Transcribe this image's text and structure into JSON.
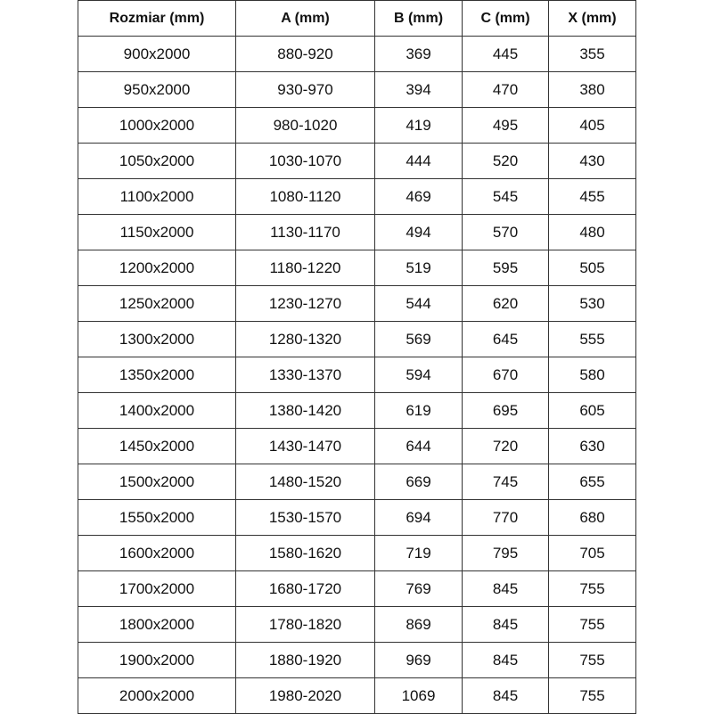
{
  "table": {
    "headers": [
      "Rozmiar (mm)",
      "A (mm)",
      "B (mm)",
      "C (mm)",
      "X (mm)"
    ],
    "rows": [
      [
        "900x2000",
        "880-920",
        "369",
        "445",
        "355"
      ],
      [
        "950x2000",
        "930-970",
        "394",
        "470",
        "380"
      ],
      [
        "1000x2000",
        "980-1020",
        "419",
        "495",
        "405"
      ],
      [
        "1050x2000",
        "1030-1070",
        "444",
        "520",
        "430"
      ],
      [
        "1100x2000",
        "1080-1120",
        "469",
        "545",
        "455"
      ],
      [
        "1150x2000",
        "1130-1170",
        "494",
        "570",
        "480"
      ],
      [
        "1200x2000",
        "1180-1220",
        "519",
        "595",
        "505"
      ],
      [
        "1250x2000",
        "1230-1270",
        "544",
        "620",
        "530"
      ],
      [
        "1300x2000",
        "1280-1320",
        "569",
        "645",
        "555"
      ],
      [
        "1350x2000",
        "1330-1370",
        "594",
        "670",
        "580"
      ],
      [
        "1400x2000",
        "1380-1420",
        "619",
        "695",
        "605"
      ],
      [
        "1450x2000",
        "1430-1470",
        "644",
        "720",
        "630"
      ],
      [
        "1500x2000",
        "1480-1520",
        "669",
        "745",
        "655"
      ],
      [
        "1550x2000",
        "1530-1570",
        "694",
        "770",
        "680"
      ],
      [
        "1600x2000",
        "1580-1620",
        "719",
        "795",
        "705"
      ],
      [
        "1700x2000",
        "1680-1720",
        "769",
        "845",
        "755"
      ],
      [
        "1800x2000",
        "1780-1820",
        "869",
        "845",
        "755"
      ],
      [
        "1900x2000",
        "1880-1920",
        "969",
        "845",
        "755"
      ],
      [
        "2000x2000",
        "1980-2020",
        "1069",
        "845",
        "755"
      ]
    ]
  }
}
